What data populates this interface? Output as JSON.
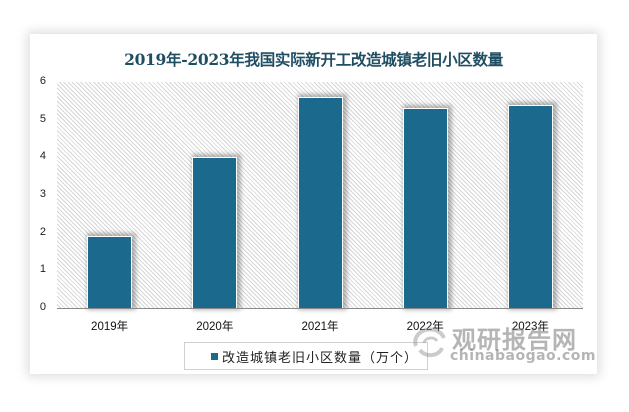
{
  "chart_data": {
    "type": "bar",
    "title": "2019年-2023年我国实际新开工改造城镇老旧小区数量",
    "categories": [
      "2019年",
      "2020年",
      "2021年",
      "2022年",
      "2023年"
    ],
    "series": [
      {
        "name": "改造城镇老旧小区数量（万个）",
        "values": [
          1.9,
          4.0,
          5.6,
          5.3,
          5.4
        ],
        "color": "#1b6a8e"
      }
    ],
    "xlabel": "",
    "ylabel": "",
    "ylim": [
      0,
      6
    ],
    "yticks": [
      "0",
      "1",
      "2",
      "3",
      "4",
      "5",
      "6"
    ],
    "grid": false,
    "legend_position": "bottom"
  },
  "chart": {
    "title": "2019年-2023年我国实际新开工改造城镇老旧小区数量",
    "legend_label": "改造城镇老旧小区数量（万个）"
  },
  "watermark": {
    "cn": "观研报告网",
    "en": "chinabaogao.com"
  },
  "colors": {
    "bar": "#1b6a8e",
    "title": "#1f4e63"
  }
}
